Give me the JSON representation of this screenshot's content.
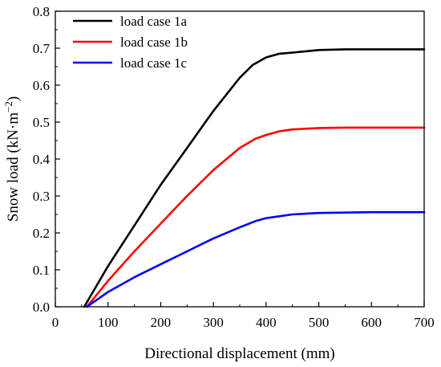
{
  "chart_data": {
    "type": "line",
    "xlabel": "Directional displacement (mm)",
    "ylabel_main": "Snow load (kN·m",
    "ylabel_exp": "−2",
    "ylabel_close": ")",
    "xlim": [
      0,
      700
    ],
    "ylim": [
      0.0,
      0.8
    ],
    "xticks": [
      0,
      100,
      200,
      300,
      400,
      500,
      600,
      700
    ],
    "yticks": [
      0.0,
      0.1,
      0.2,
      0.3,
      0.4,
      0.5,
      0.6,
      0.7,
      0.8
    ],
    "ytick_labels": [
      "0.0",
      "0.1",
      "0.2",
      "0.3",
      "0.4",
      "0.5",
      "0.6",
      "0.7",
      "0.8"
    ],
    "grid": false,
    "legend_position": "top-left",
    "series": [
      {
        "name": "load case 1a",
        "color": "#000000",
        "x": [
          55,
          100,
          150,
          200,
          250,
          300,
          350,
          375,
          400,
          425,
          450,
          500,
          550,
          600,
          650,
          700
        ],
        "y": [
          0.0,
          0.11,
          0.22,
          0.33,
          0.43,
          0.53,
          0.62,
          0.655,
          0.675,
          0.685,
          0.688,
          0.695,
          0.697,
          0.697,
          0.697,
          0.697
        ]
      },
      {
        "name": "load case 1b",
        "color": "#ff0000",
        "x": [
          60,
          100,
          150,
          200,
          250,
          300,
          350,
          380,
          400,
          425,
          450,
          500,
          550,
          600,
          650,
          700
        ],
        "y": [
          0.0,
          0.07,
          0.15,
          0.225,
          0.3,
          0.37,
          0.43,
          0.455,
          0.465,
          0.475,
          0.48,
          0.484,
          0.485,
          0.485,
          0.485,
          0.485
        ]
      },
      {
        "name": "load case 1c",
        "color": "#0000ff",
        "x": [
          60,
          100,
          150,
          200,
          250,
          300,
          350,
          380,
          400,
          425,
          450,
          500,
          550,
          600,
          650,
          700
        ],
        "y": [
          0.0,
          0.04,
          0.08,
          0.115,
          0.15,
          0.185,
          0.215,
          0.232,
          0.24,
          0.245,
          0.25,
          0.254,
          0.255,
          0.256,
          0.256,
          0.256
        ]
      }
    ]
  }
}
